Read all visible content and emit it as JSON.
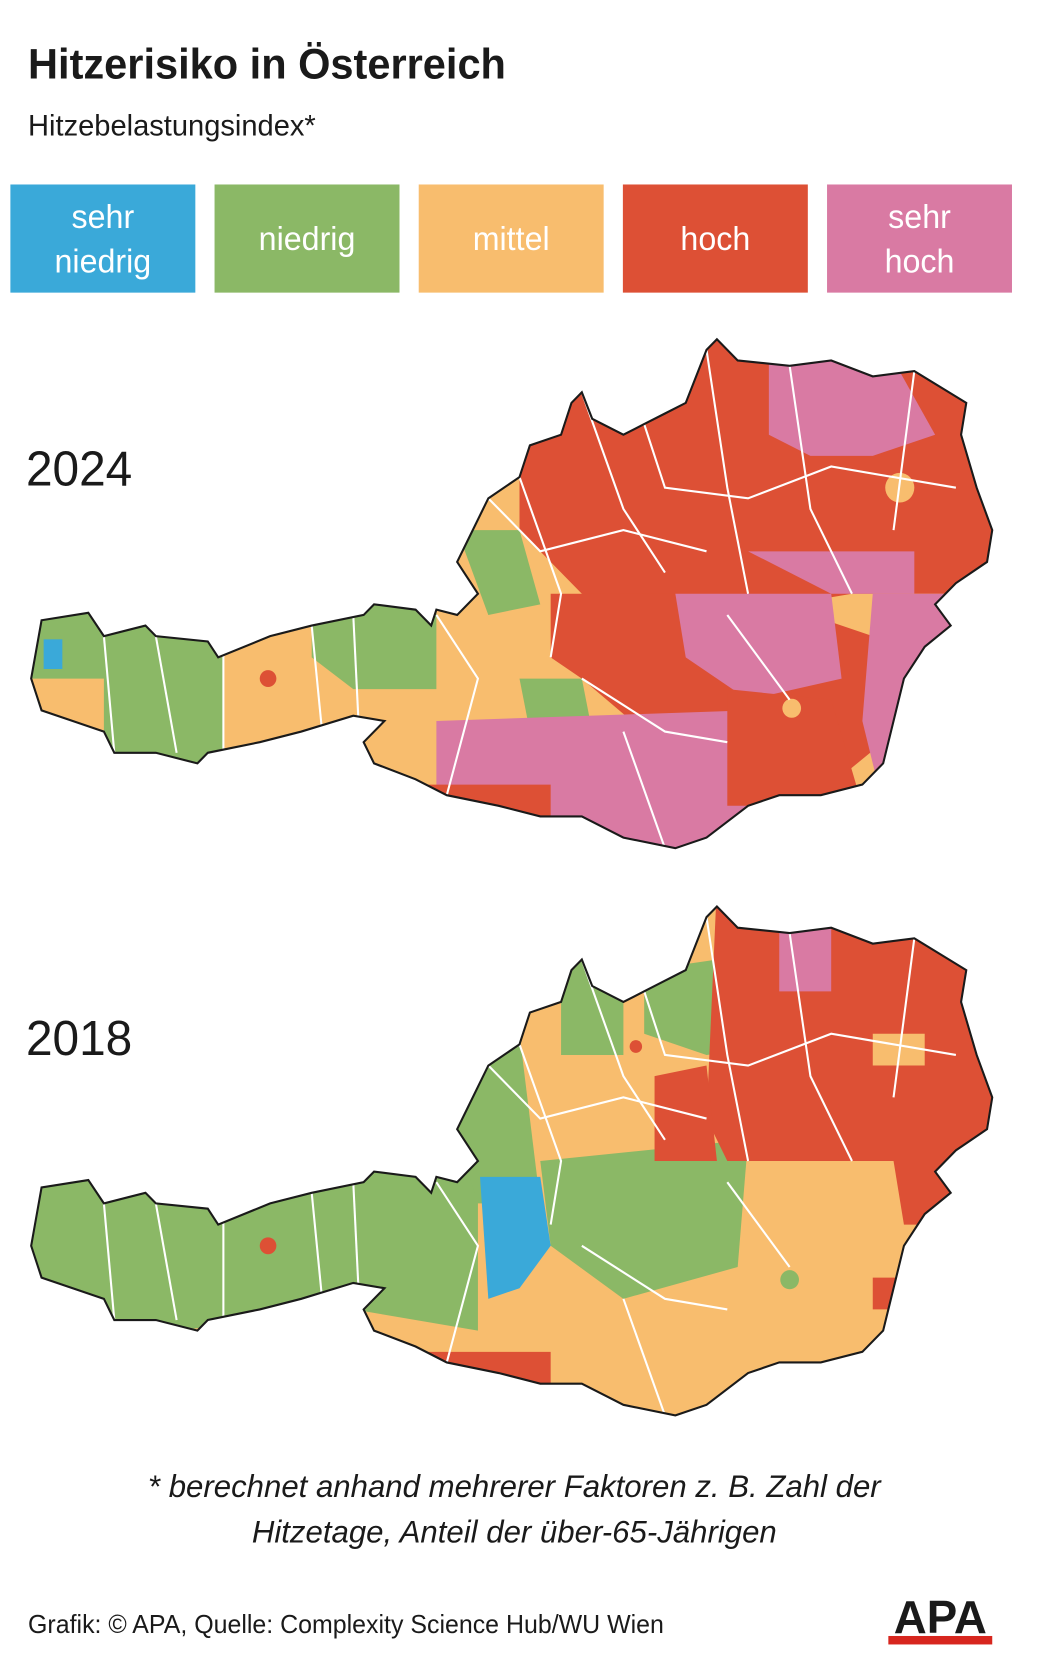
{
  "header": {
    "title": "Hitzerisiko in Österreich",
    "subtitle": "Hitzebelastungsindex*"
  },
  "legend": {
    "items": [
      {
        "lines": [
          "sehr",
          "niedrig"
        ],
        "color": "#3aa9d9"
      },
      {
        "lines": [
          "niedrig"
        ],
        "color": "#8bb866"
      },
      {
        "lines": [
          "mittel"
        ],
        "color": "#f8bd6e"
      },
      {
        "lines": [
          "hoch"
        ],
        "color": "#dd5035"
      },
      {
        "lines": [
          "sehr",
          "hoch"
        ],
        "color": "#d97aa3"
      }
    ]
  },
  "maps": [
    {
      "year": "2024"
    },
    {
      "year": "2018"
    }
  ],
  "footnote": {
    "lines": [
      "* berechnet anhand mehrerer Faktoren z. B. Zahl der",
      "Hitzetage, Anteil der über-65-Jährigen"
    ]
  },
  "footer": {
    "source": "Grafik: © APA, Quelle: Complexity Science Hub/WU Wien",
    "logo": "APA"
  }
}
